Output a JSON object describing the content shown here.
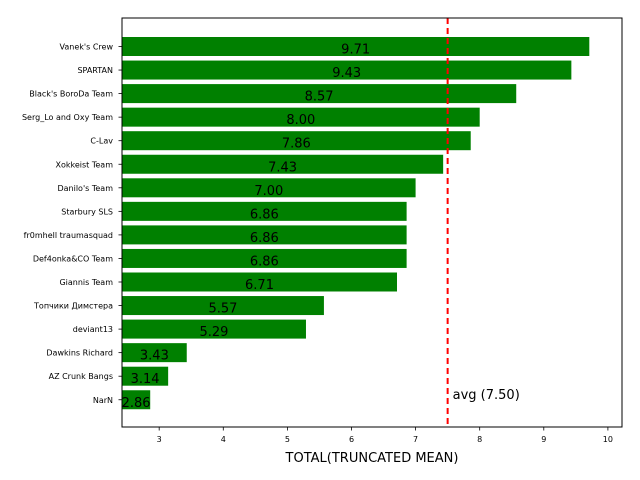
{
  "chart_data": {
    "type": "bar",
    "orientation": "horizontal",
    "categories": [
      "Vanek's Crew",
      "SPARTAN",
      "Black's BoroDa Team",
      "Serg_Lo and Oxy Team",
      "C-Lav",
      "Xokkeist Team",
      "Danilo's Team",
      "Starbury SLS",
      "fr0mhell traumasquad",
      "Def4onka&CO Team",
      "Giannis Team",
      "Топчики Димстера",
      "deviant13",
      "Dawkins Richard",
      "AZ Crunk Bangs",
      "NarN"
    ],
    "values": [
      9.71,
      9.43,
      8.57,
      8.0,
      7.86,
      7.43,
      7.0,
      6.86,
      6.86,
      6.86,
      6.71,
      5.57,
      5.29,
      3.43,
      3.14,
      2.86
    ],
    "data_labels": [
      "9.71",
      "9.43",
      "8.57",
      "8.00",
      "7.86",
      "7.43",
      "7.00",
      "6.86",
      "6.86",
      "6.86",
      "6.71",
      "5.57",
      "5.29",
      "3.43",
      "3.14",
      "2.86"
    ],
    "xlabel": "TOTAL(TRUNCATED MEAN)",
    "ylabel": "",
    "title": "",
    "xlim": [
      2.42,
      10.22
    ],
    "xticks": [
      3,
      4,
      5,
      6,
      7,
      8,
      9,
      10
    ],
    "grid": false,
    "bar_color": "#008000",
    "reference_line": {
      "value": 7.5,
      "label": "avg (7.50)",
      "color": "#ff0000",
      "style": "dashed"
    }
  }
}
